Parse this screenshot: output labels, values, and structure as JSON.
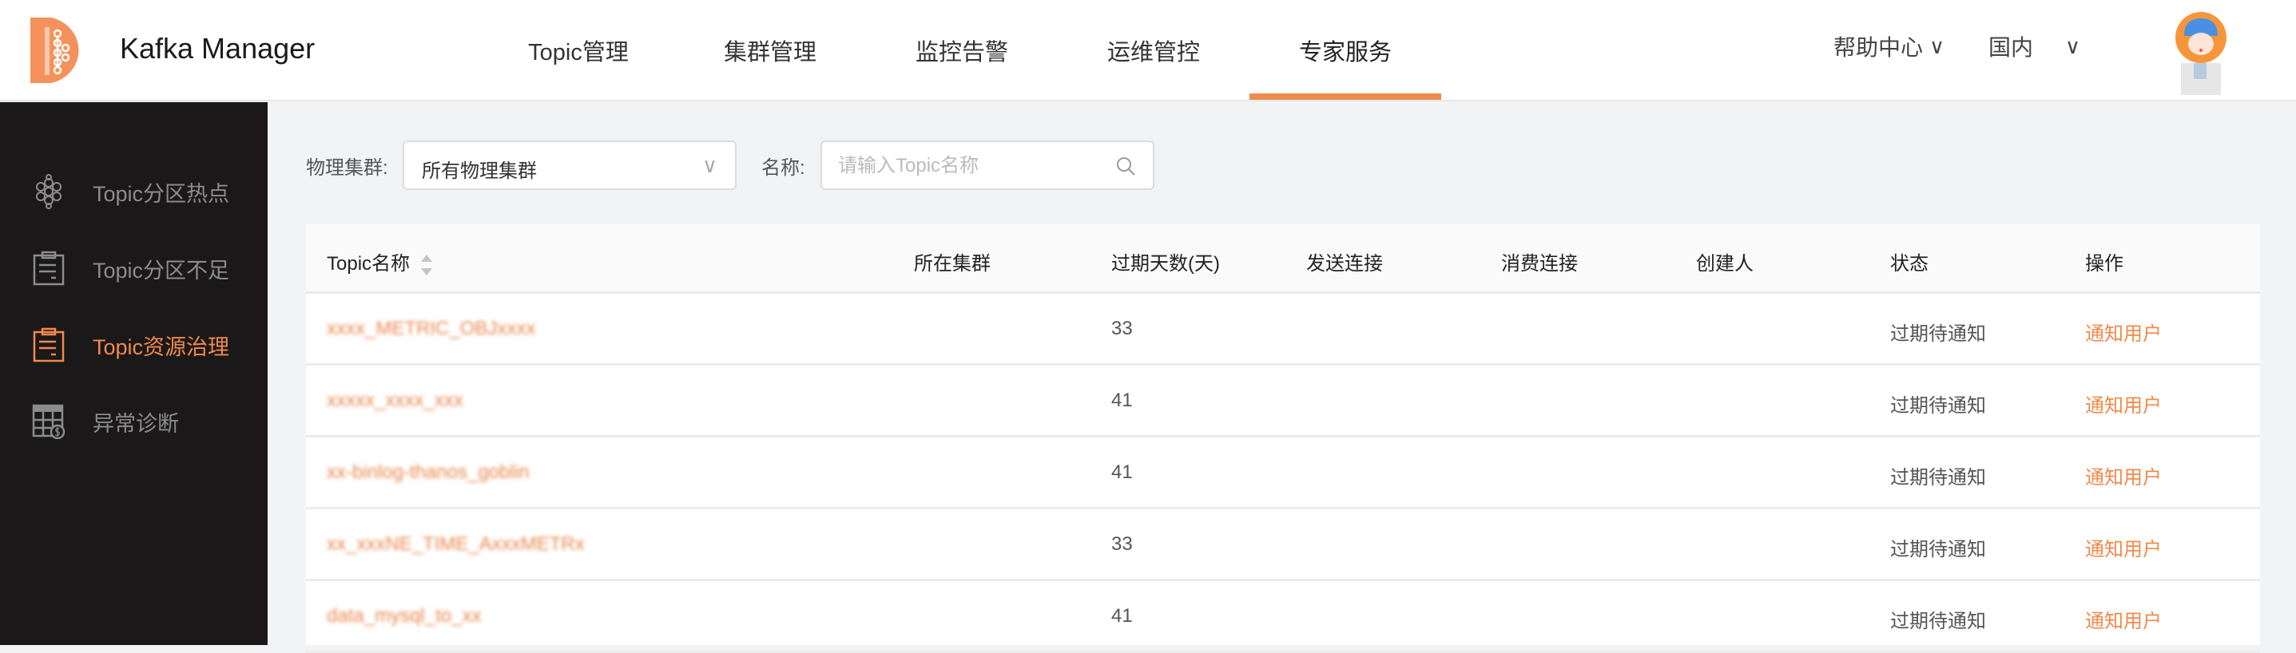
{
  "header": {
    "app_title": "Kafka Manager",
    "nav": [
      {
        "label": "Topic管理"
      },
      {
        "label": "集群管理"
      },
      {
        "label": "监控告警"
      },
      {
        "label": "运维管控"
      },
      {
        "label": "专家服务",
        "active": true
      }
    ],
    "help_label": "帮助中心",
    "region_label": "国内",
    "accent_color": "#f08a4b"
  },
  "sidebar": {
    "items": [
      {
        "label": "Topic分区热点",
        "icon": "honeycomb-icon"
      },
      {
        "label": "Topic分区不足",
        "icon": "clipboard-icon"
      },
      {
        "label": "Topic资源治理",
        "icon": "clipboard-icon",
        "active": true
      },
      {
        "label": "异常诊断",
        "icon": "table-dollar-icon"
      }
    ]
  },
  "filters": {
    "cluster_label": "物理集群:",
    "cluster_value": "所有物理集群",
    "name_label": "名称:",
    "name_placeholder": "请输入Topic名称"
  },
  "table": {
    "columns": [
      "Topic名称",
      "所在集群",
      "过期天数(天)",
      "发送连接",
      "消费连接",
      "创建人",
      "状态",
      "操作"
    ],
    "rows": [
      {
        "name": "xxxx_METRIC_OBJxxxx",
        "cluster": "",
        "expire_days": "33",
        "produce": "",
        "consume": "",
        "creator": "",
        "status": "过期待通知",
        "action": "通知用户"
      },
      {
        "name": "xxxxx_xxxx_xxx",
        "cluster": "",
        "expire_days": "41",
        "produce": "",
        "consume": "",
        "creator": "",
        "status": "过期待通知",
        "action": "通知用户"
      },
      {
        "name": "xx-binlog-thanos_goblin",
        "cluster": "",
        "expire_days": "41",
        "produce": "",
        "consume": "",
        "creator": "",
        "status": "过期待通知",
        "action": "通知用户"
      },
      {
        "name": "xx_xxxNE_TIME_AxxxMETRx",
        "cluster": "",
        "expire_days": "33",
        "produce": "",
        "consume": "",
        "creator": "",
        "status": "过期待通知",
        "action": "通知用户"
      },
      {
        "name": "data_mysql_to_xx",
        "cluster": "",
        "expire_days": "41",
        "produce": "",
        "consume": "",
        "creator": "",
        "status": "过期待通知",
        "action": "通知用户"
      }
    ]
  }
}
